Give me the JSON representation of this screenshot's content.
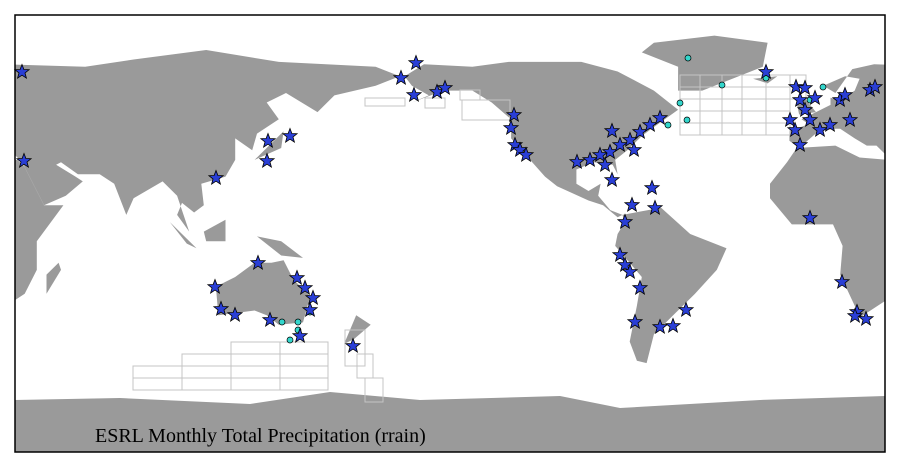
{
  "caption": "ESRL Monthly Total Precipitation (rrain)"
}
